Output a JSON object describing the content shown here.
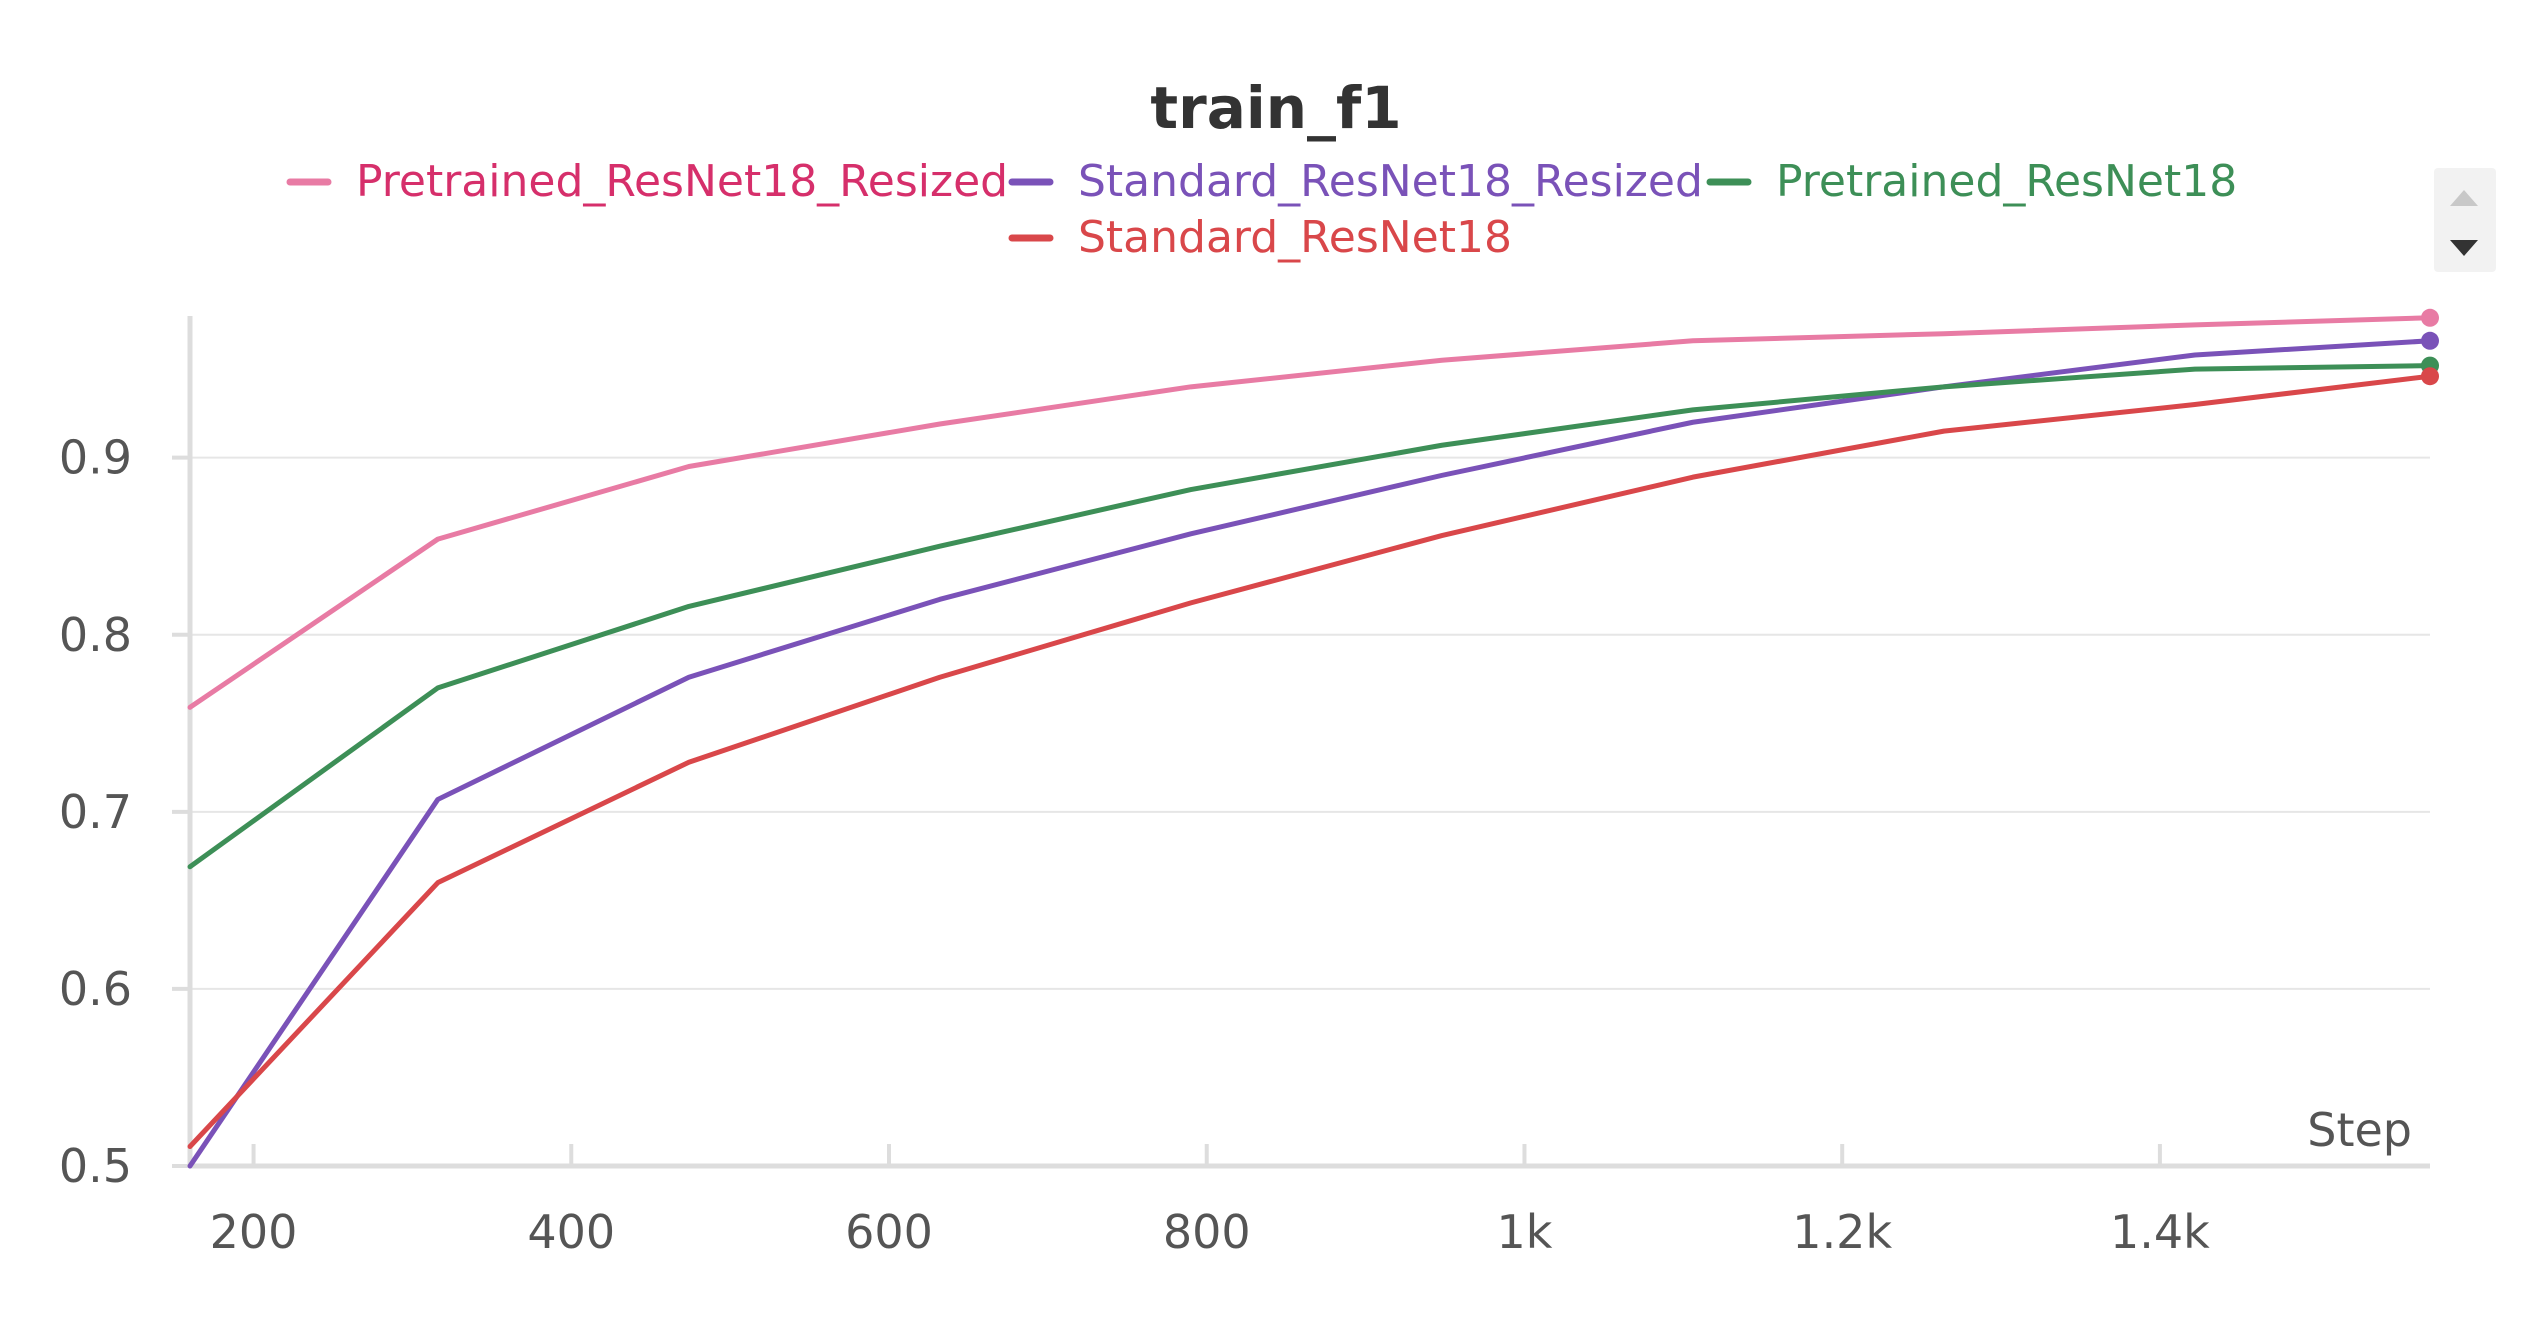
{
  "chart_data": {
    "type": "line",
    "title": "train_f1",
    "xlabel": "Step",
    "ylabel": "",
    "xlim": [
      160,
      1570
    ],
    "ylim": [
      0.5,
      0.98
    ],
    "x_ticks": [
      200,
      400,
      600,
      800,
      1000,
      1200,
      1400
    ],
    "x_tick_labels": [
      "200",
      "400",
      "600",
      "800",
      "1k",
      "1.2k",
      "1.4k"
    ],
    "y_ticks": [
      0.5,
      0.6,
      0.7,
      0.8,
      0.9
    ],
    "y_tick_labels": [
      "0.5",
      "0.6",
      "0.7",
      "0.8",
      "0.9"
    ],
    "grid": "horizontal",
    "legend_position": "top",
    "x": [
      160,
      316,
      474,
      632,
      790,
      948,
      1106,
      1264,
      1422,
      1570
    ],
    "series": [
      {
        "name": "Pretrained_ResNet18_Resized",
        "color": "#e87ba4",
        "label_color": "#d62f6b",
        "values": [
          0.759,
          0.854,
          0.895,
          0.919,
          0.94,
          0.955,
          0.966,
          0.97,
          0.975,
          0.979
        ]
      },
      {
        "name": "Standard_ResNet18_Resized",
        "color": "#7a52b8",
        "label_color": "#7a52b8",
        "values": [
          0.5,
          0.707,
          0.776,
          0.82,
          0.857,
          0.89,
          0.92,
          0.94,
          0.958,
          0.966
        ]
      },
      {
        "name": "Pretrained_ResNet18",
        "color": "#3d8f57",
        "label_color": "#3d8f57",
        "values": [
          0.669,
          0.77,
          0.816,
          0.85,
          0.882,
          0.907,
          0.927,
          0.94,
          0.95,
          0.952
        ]
      },
      {
        "name": "Standard_ResNet18",
        "color": "#d9474a",
        "label_color": "#d9474a",
        "values": [
          0.511,
          0.66,
          0.728,
          0.776,
          0.818,
          0.856,
          0.889,
          0.915,
          0.93,
          0.946
        ]
      }
    ]
  },
  "legend_scroll": {
    "up_icon": "triangle-up-icon",
    "down_icon": "triangle-down-icon"
  }
}
